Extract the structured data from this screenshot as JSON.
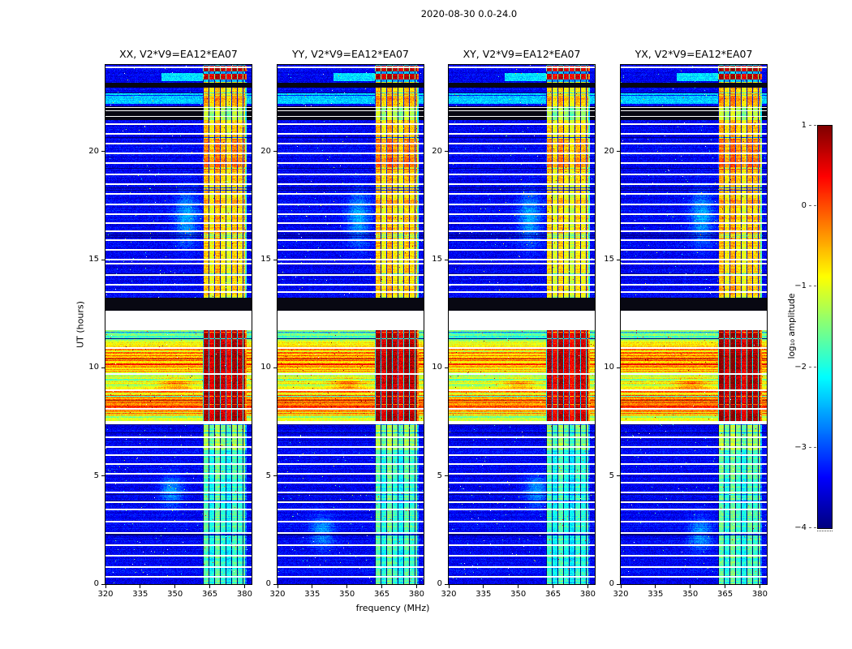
{
  "figure": {
    "title": "2020-08-30 0.0-24.0",
    "xlabel": "frequency (MHz)",
    "ylabel": "UT (hours)",
    "background": "#ffffff"
  },
  "chart_data": {
    "type": "heatmap",
    "title": "2020-08-30 0.0-24.0",
    "panels": [
      {
        "title": "XX, V2*V9=EA12*EA07"
      },
      {
        "title": "YY, V2*V9=EA12*EA07"
      },
      {
        "title": "XY, V2*V9=EA12*EA07"
      },
      {
        "title": "YX, V2*V9=EA12*EA07"
      }
    ],
    "x": {
      "label": "frequency (MHz)",
      "min": 320,
      "max": 383,
      "ticks": [
        320,
        335,
        350,
        365,
        380
      ],
      "unit": "MHz"
    },
    "y": {
      "label": "UT (hours)",
      "min": 0,
      "max": 24,
      "ticks": [
        0,
        5,
        10,
        15,
        20
      ],
      "unit": "hours"
    },
    "colorbar": {
      "label": "log₁₀ amplitude",
      "min": -4,
      "max": 1,
      "ticks": [
        1,
        0,
        -1,
        -2,
        -3,
        -4
      ],
      "colormap": "jet"
    },
    "features": {
      "background_noise_log10_amp": -3.4,
      "rfi_band_mhz": [
        362,
        381
      ],
      "rfi_channel_width_mhz": 2.45,
      "burst_interval_ut": [
        7.55,
        11.72
      ],
      "burst_peaks_ut": [
        8.35,
        10.45
      ],
      "data_gap_white_ut": [
        11.75,
        12.62
      ],
      "masked_black_full_ut": [
        [
          12.62,
          13.25
        ],
        [
          22.95,
          23.18
        ]
      ],
      "masked_black_dim_rfi_ut": [
        21.45,
        22.1
      ],
      "cyan_band_ut": [
        22.2,
        22.7
      ],
      "top_active_ut": [
        23.2,
        24.0
      ],
      "top_bright_block_rows_ut": [
        [
          23.32,
          23.58
        ],
        [
          23.7,
          23.97
        ]
      ],
      "rfi_epoch_log10_amp": {
        "ut_0.0-6.2": -1.95,
        "ut_6.2-7.55": -1.5,
        "ut_7.55-11.72": 0.5,
        "ut_13.25-19.0": -0.78,
        "ut_19.0-20.6": -0.5,
        "ut_20.6-24.0": -0.78
      },
      "white_flag_rows_ut": [
        0.35,
        0.8,
        1.3,
        1.8,
        2.35,
        2.9,
        3.45,
        3.8,
        4.25,
        4.7,
        5.1,
        5.55,
        5.95,
        6.35,
        6.8,
        7.42,
        7.5,
        8.1,
        8.95,
        9.7,
        10.9,
        13.5,
        13.85,
        14.3,
        14.8,
        15.0,
        15.45,
        15.9,
        16.3,
        16.7,
        17.1,
        17.55,
        18.05,
        18.5,
        18.95,
        19.45,
        19.9,
        20.35,
        20.8,
        21.25,
        21.62,
        21.88,
        22.03,
        23.9
      ]
    }
  }
}
